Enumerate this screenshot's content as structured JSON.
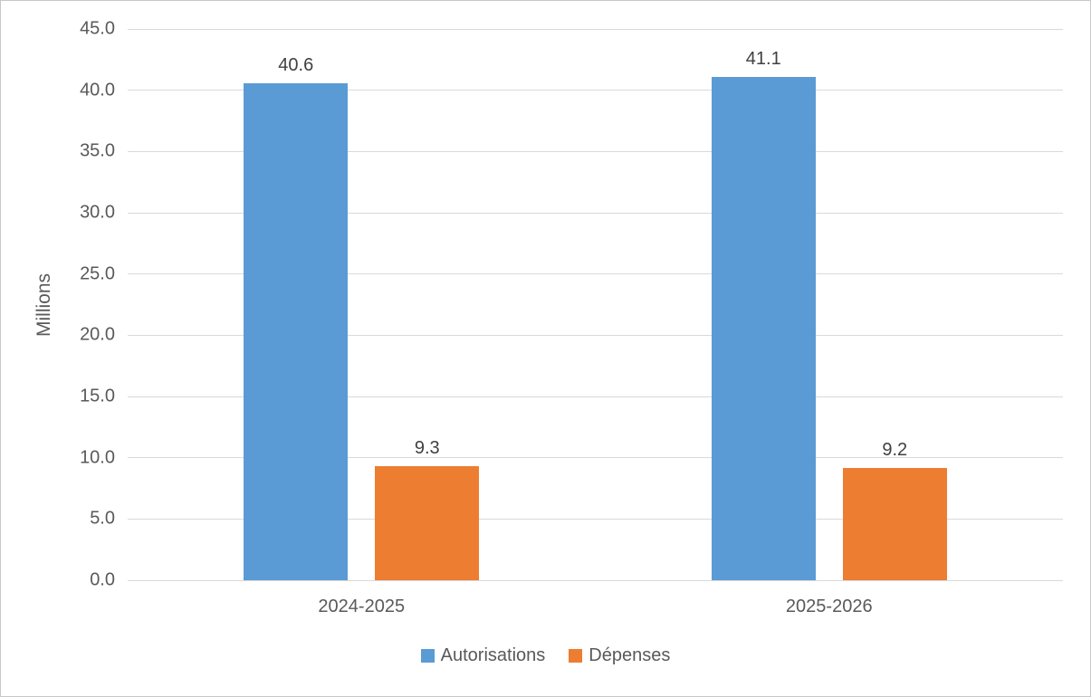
{
  "chart_data": {
    "type": "bar",
    "categories": [
      "2024-2025",
      "2025-2026"
    ],
    "series": [
      {
        "name": "Autorisations",
        "color": "#5B9BD5",
        "values": [
          40.6,
          41.1
        ],
        "labels": [
          "40.6",
          "41.1"
        ]
      },
      {
        "name": "Dépenses",
        "color": "#ED7D31",
        "values": [
          9.3,
          9.2
        ],
        "labels": [
          "9.3",
          "9.2"
        ]
      }
    ],
    "title": "",
    "xlabel": "",
    "ylabel": "Millions",
    "ylim": [
      0,
      45
    ],
    "ytick_step": 5,
    "ytick_labels": [
      "0.0",
      "5.0",
      "10.0",
      "15.0",
      "20.0",
      "25.0",
      "30.0",
      "35.0",
      "40.0",
      "45.0"
    ],
    "grid": true,
    "legend_position": "bottom"
  },
  "colors": {
    "gridline": "#D9D9D9",
    "axis_text": "#595959",
    "data_label_text": "#404040",
    "frame_border": "#C8C8C8",
    "series_blue": "#5B9BD5",
    "series_orange": "#ED7D31"
  }
}
